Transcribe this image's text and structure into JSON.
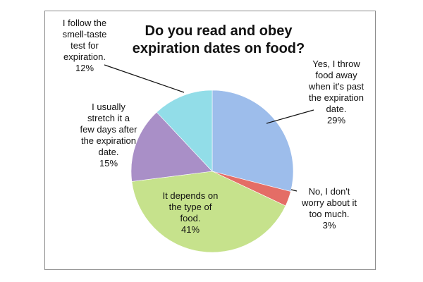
{
  "chart_data": {
    "type": "pie",
    "title_lines": [
      "Do you read and obey",
      "expiration dates on food?"
    ],
    "start_angle_deg": 0,
    "direction": "clockwise",
    "slices": [
      {
        "label_lines": [
          "Yes, I throw",
          "food away",
          "when it's past",
          "the expiration",
          "date."
        ],
        "percent_text": "29%",
        "value": 29,
        "color": "#9dbdeb"
      },
      {
        "label_lines": [
          "No, I don't",
          "worry about it",
          "too much."
        ],
        "percent_text": "3%",
        "value": 3,
        "color": "#e46d66"
      },
      {
        "label_lines": [
          "It depends on",
          "the type of",
          "food."
        ],
        "percent_text": "41%",
        "value": 41,
        "color": "#c6e28c"
      },
      {
        "label_lines": [
          "I usually",
          "stretch it a",
          "few days after",
          "the expiration",
          "date."
        ],
        "percent_text": "15%",
        "value": 15,
        "color": "#a98fc7"
      },
      {
        "label_lines": [
          "I follow the",
          "smell-taste",
          "test for",
          "expiration."
        ],
        "percent_text": "12%",
        "value": 12,
        "color": "#92dde8"
      }
    ]
  }
}
